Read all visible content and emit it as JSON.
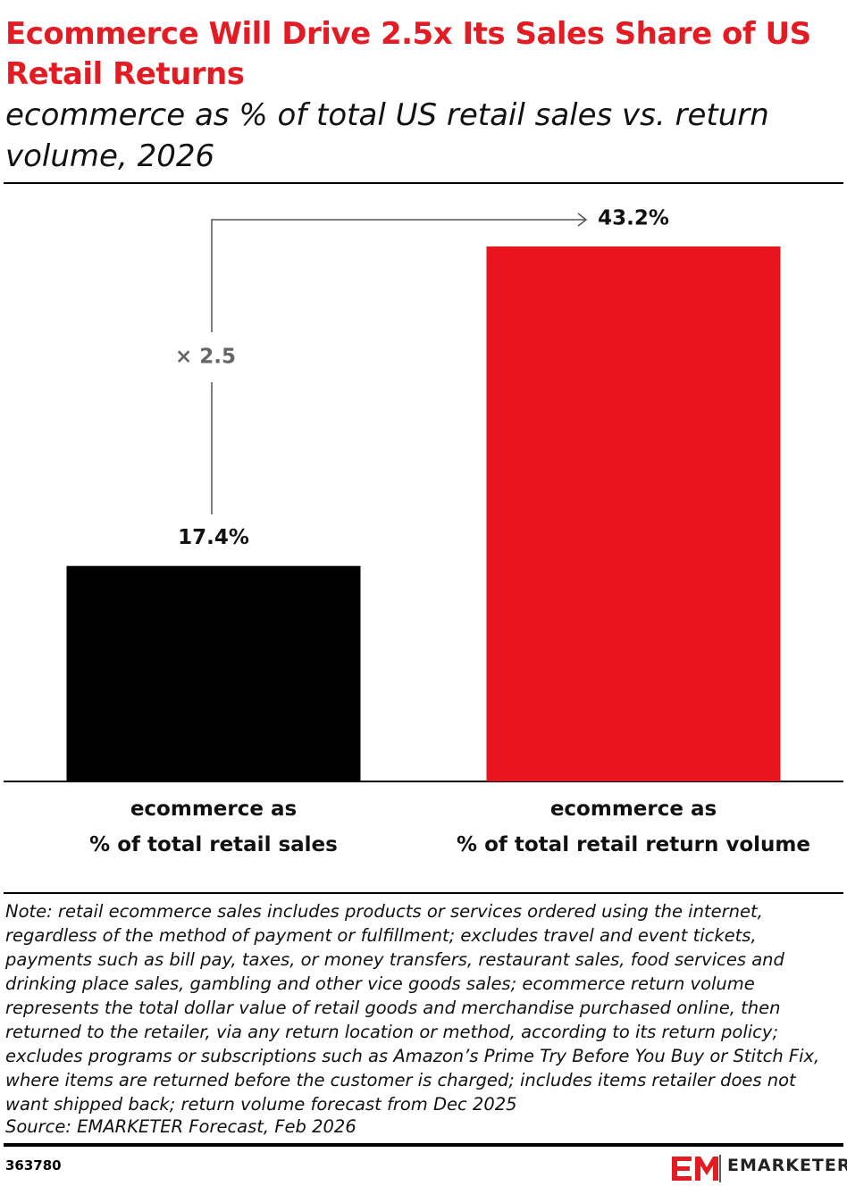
{
  "chart_data": {
    "type": "bar",
    "title": "Ecommerce Will Drive 2.5x Its Sales Share of US Retail Returns",
    "subtitle": "ecommerce as % of total US retail sales vs. return volume, 2026",
    "categories": [
      "ecommerce as\n% of total retail sales",
      "ecommerce as\n% of total retail return volume"
    ],
    "values": [
      17.4,
      43.2
    ],
    "value_labels": [
      "17.4%",
      "43.2%"
    ],
    "colors": [
      "#000000",
      "#e8141e"
    ],
    "ylim": [
      0,
      45
    ],
    "annotation": "× 2.5",
    "note": "Note: retail ecommerce sales includes products or services ordered using the internet, regardless of the method of payment or fulfillment; excludes travel and event tickets, payments such as bill pay, taxes, or money transfers, restaurant sales, food services and drinking place sales, gambling and other vice goods sales; ecommerce return volume represents the total dollar value of retail goods and merchandise purchased online, then returned to the retailer, via any return location or method, according to its return policy; excludes programs or subscriptions such as Amazon’s Prime Try Before You Buy or Stitch Fix, where items are returned before the customer is charged; includes items retailer does not want shipped back; return volume forecast from Dec 2025",
    "source": "Source: EMARKETER Forecast, Feb 2026",
    "chart_id": "363780",
    "brand": "EMARKETER"
  }
}
